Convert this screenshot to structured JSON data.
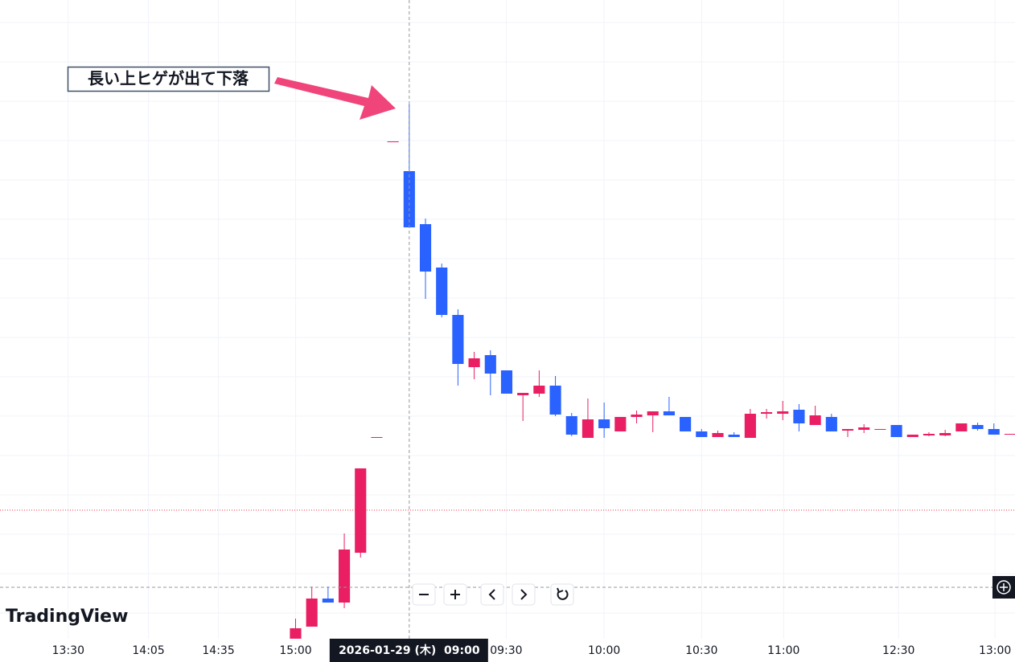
{
  "logo": "TradingView",
  "annotation": {
    "text": "長い上ヒゲが出て下落"
  },
  "chart_data": {
    "type": "candlestick",
    "up_color": "#e91e63",
    "down_color": "#2962ff",
    "xlim": [
      -18.2,
      44.3
    ],
    "ylim": [
      0,
      795
    ],
    "ygrid": [
      767,
      718,
      669,
      620,
      571,
      522,
      473,
      424,
      375,
      326,
      277,
      228,
      179,
      130,
      81,
      32
    ],
    "xticks": [
      {
        "value": -14.0,
        "label": "13:30"
      },
      {
        "value": -9.06,
        "label": "14:05"
      },
      {
        "value": -4.75,
        "label": "14:35"
      },
      {
        "value": 0,
        "label": "15:00"
      },
      {
        "value": 12.97,
        "label": "09:30"
      },
      {
        "value": 19.0,
        "label": "10:00"
      },
      {
        "value": 25.0,
        "label": "10:30"
      },
      {
        "value": 30.05,
        "label": "11:00"
      },
      {
        "value": 37.13,
        "label": "12:30"
      },
      {
        "value": 43.07,
        "label": "13:00"
      }
    ],
    "crosshair": {
      "x": 7,
      "y": 64,
      "label": "2026-01-29 (木)  09:00"
    },
    "price_line": 160,
    "open": [
      0,
      15,
      50,
      45,
      107,
      251,
      619,
      582,
      516,
      462,
      403,
      338,
      353,
      334,
      303,
      305,
      315,
      277,
      250,
      273,
      258,
      276,
      278,
      283,
      276,
      258,
      251,
      254,
      250,
      280,
      280,
      285,
      266,
      276,
      259,
      260,
      261,
      266,
      251,
      253,
      253,
      258,
      266,
      261,
      255
    ],
    "high": [
      25,
      65,
      65,
      131,
      212,
      251,
      619,
      665,
      523,
      467,
      410,
      357,
      359,
      334,
      306,
      334,
      327,
      281,
      299,
      294,
      276,
      284,
      283,
      301,
      276,
      261,
      259,
      257,
      286,
      286,
      296,
      292,
      290,
      280,
      261,
      267,
      261,
      266,
      254,
      257,
      260,
      268,
      269,
      268,
      255
    ],
    "low": [
      0,
      15,
      45,
      38,
      101,
      251,
      619,
      512,
      423,
      400,
      315,
      323,
      303,
      305,
      271,
      301,
      277,
      252,
      250,
      250,
      258,
      268,
      257,
      278,
      258,
      251,
      251,
      251,
      250,
      274,
      272,
      258,
      266,
      258,
      251,
      256,
      261,
      251,
      251,
      252,
      252,
      258,
      259,
      254,
      255
    ],
    "close": [
      13,
      50,
      45,
      111,
      212,
      251,
      619,
      512,
      457,
      403,
      342,
      349,
      330,
      305,
      306,
      315,
      279,
      254,
      273,
      262,
      276,
      279,
      283,
      278,
      258,
      251,
      256,
      251,
      280,
      282,
      283,
      268,
      278,
      258,
      261,
      263,
      261,
      251,
      254,
      255,
      256,
      268,
      261,
      254,
      255
    ]
  }
}
